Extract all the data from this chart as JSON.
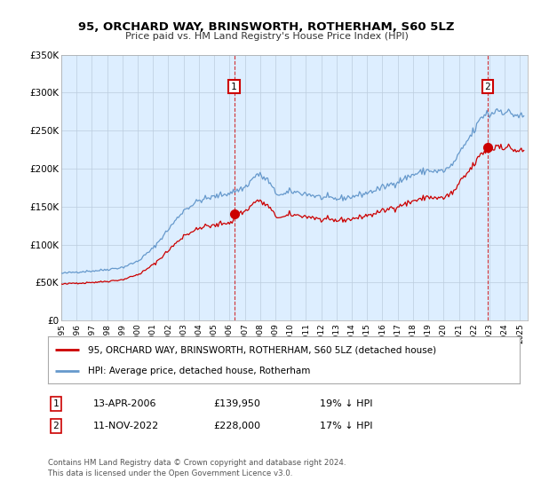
{
  "title": "95, ORCHARD WAY, BRINSWORTH, ROTHERHAM, S60 5LZ",
  "subtitle": "Price paid vs. HM Land Registry's House Price Index (HPI)",
  "ylabel_ticks": [
    "£0",
    "£50K",
    "£100K",
    "£150K",
    "£200K",
    "£250K",
    "£300K",
    "£350K"
  ],
  "ylim": [
    0,
    350000
  ],
  "xlim_start": 1995.0,
  "xlim_end": 2025.5,
  "property_color": "#cc0000",
  "hpi_color": "#6699cc",
  "plot_bg_color": "#ddeeff",
  "property_label": "95, ORCHARD WAY, BRINSWORTH, ROTHERHAM, S60 5LZ (detached house)",
  "hpi_label": "HPI: Average price, detached house, Rotherham",
  "transaction1_label": "1",
  "transaction1_date": "13-APR-2006",
  "transaction1_price": "£139,950",
  "transaction1_hpi": "19% ↓ HPI",
  "transaction2_label": "2",
  "transaction2_date": "11-NOV-2022",
  "transaction2_price": "£228,000",
  "transaction2_hpi": "17% ↓ HPI",
  "footer": "Contains HM Land Registry data © Crown copyright and database right 2024.\nThis data is licensed under the Open Government Licence v3.0.",
  "vline1_x": 2006.3,
  "vline2_x": 2022.87,
  "point1_x": 2006.3,
  "point1_y": 139950,
  "point2_x": 2022.87,
  "point2_y": 228000,
  "background_color": "#ffffff",
  "grid_color": "#bbccdd"
}
